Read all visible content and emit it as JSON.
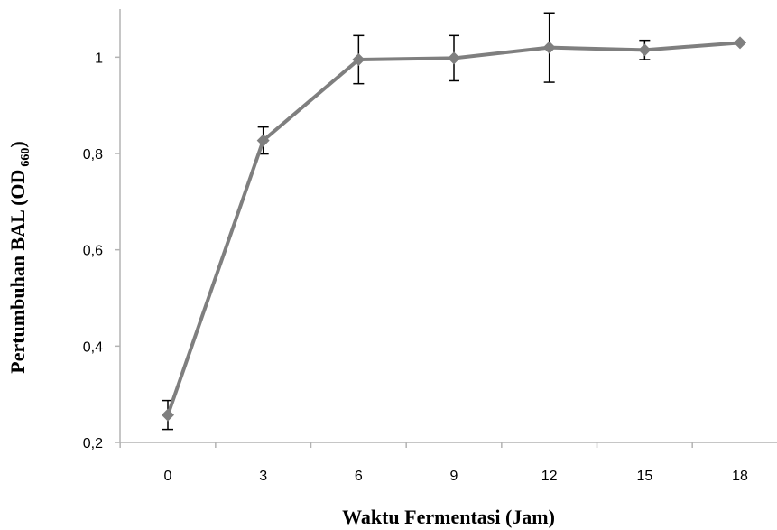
{
  "chart_data": {
    "type": "line",
    "xlabel": "Waktu Fermentasi (Jam)",
    "ylabel_main": "Pertumbuhan BAL (OD",
    "ylabel_sub": "660",
    "ylabel_close": ")",
    "x": [
      0,
      3,
      6,
      9,
      12,
      15,
      18
    ],
    "x_tick_labels": [
      "0",
      "3",
      "6",
      "9",
      "12",
      "15",
      "18"
    ],
    "y_ticks": [
      0.2,
      0.4,
      0.6,
      0.8,
      1.0
    ],
    "y_tick_labels": [
      "0,2",
      "0,4",
      "0,6",
      "0,8",
      "1"
    ],
    "ylim": [
      0.2,
      1.1
    ],
    "series": [
      {
        "values": [
          0.257,
          0.827,
          0.995,
          0.998,
          1.02,
          1.015,
          1.03
        ],
        "error": [
          0.03,
          0.028,
          0.05,
          0.047,
          0.072,
          0.02,
          0
        ],
        "color": "#7f7f7f"
      }
    ],
    "grid": false,
    "legend": "none",
    "axis_color": "#b3b3b3"
  }
}
